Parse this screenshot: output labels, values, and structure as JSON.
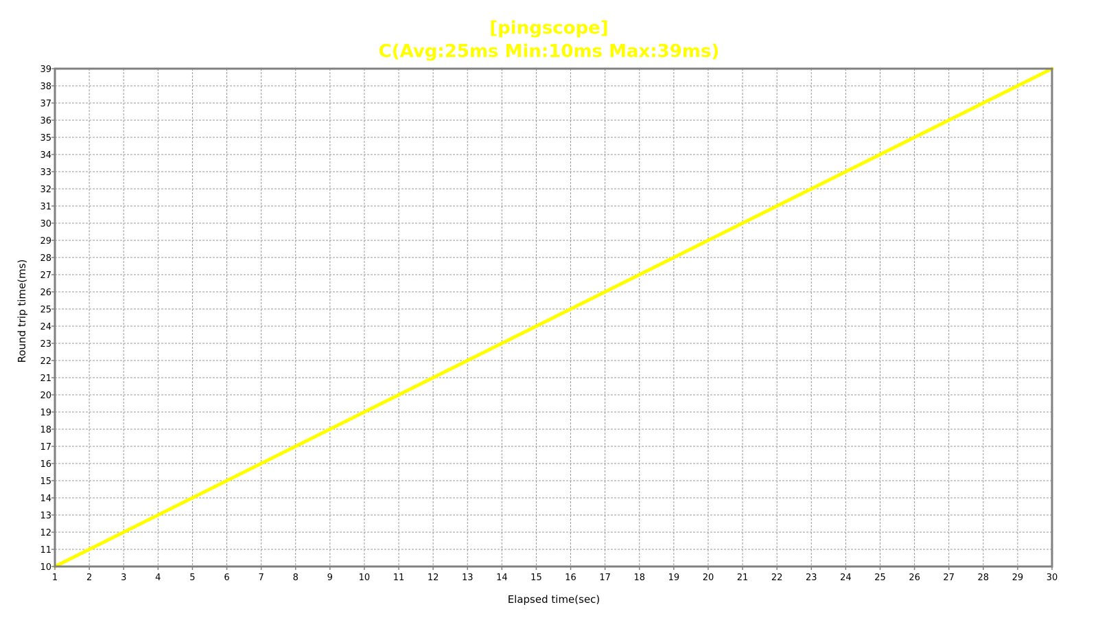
{
  "chart_data": {
    "type": "line",
    "title": "[pingscope]",
    "subtitle": "C(Avg:25ms Min:10ms Max:39ms)",
    "xlabel": "Elapsed time(sec)",
    "ylabel": "Round trip time(ms)",
    "xlim": [
      1,
      30
    ],
    "ylim": [
      10,
      39
    ],
    "x_ticks": [
      1,
      2,
      3,
      4,
      5,
      6,
      7,
      8,
      9,
      10,
      11,
      12,
      13,
      14,
      15,
      16,
      17,
      18,
      19,
      20,
      21,
      22,
      23,
      24,
      25,
      26,
      27,
      28,
      29,
      30
    ],
    "y_ticks": [
      10,
      11,
      12,
      13,
      14,
      15,
      16,
      17,
      18,
      19,
      20,
      21,
      22,
      23,
      24,
      25,
      26,
      27,
      28,
      29,
      30,
      31,
      32,
      33,
      34,
      35,
      36,
      37,
      38,
      39
    ],
    "grid": true,
    "series": [
      {
        "color": "#ffff00",
        "x": [
          1,
          2,
          3,
          4,
          5,
          6,
          7,
          8,
          9,
          10,
          11,
          12,
          13,
          14,
          15,
          16,
          17,
          18,
          19,
          20,
          21,
          22,
          23,
          24,
          25,
          26,
          27,
          28,
          29,
          30
        ],
        "y": [
          10,
          11,
          12,
          13,
          14,
          15,
          16,
          17,
          18,
          19,
          20,
          21,
          22,
          23,
          24,
          25,
          26,
          27,
          28,
          29,
          30,
          31,
          32,
          33,
          34,
          35,
          36,
          37,
          38,
          39
        ]
      }
    ]
  },
  "colors": {
    "title": "#ffff00",
    "line": "#ffff00",
    "frame": "#808080",
    "grid": "#999999"
  }
}
